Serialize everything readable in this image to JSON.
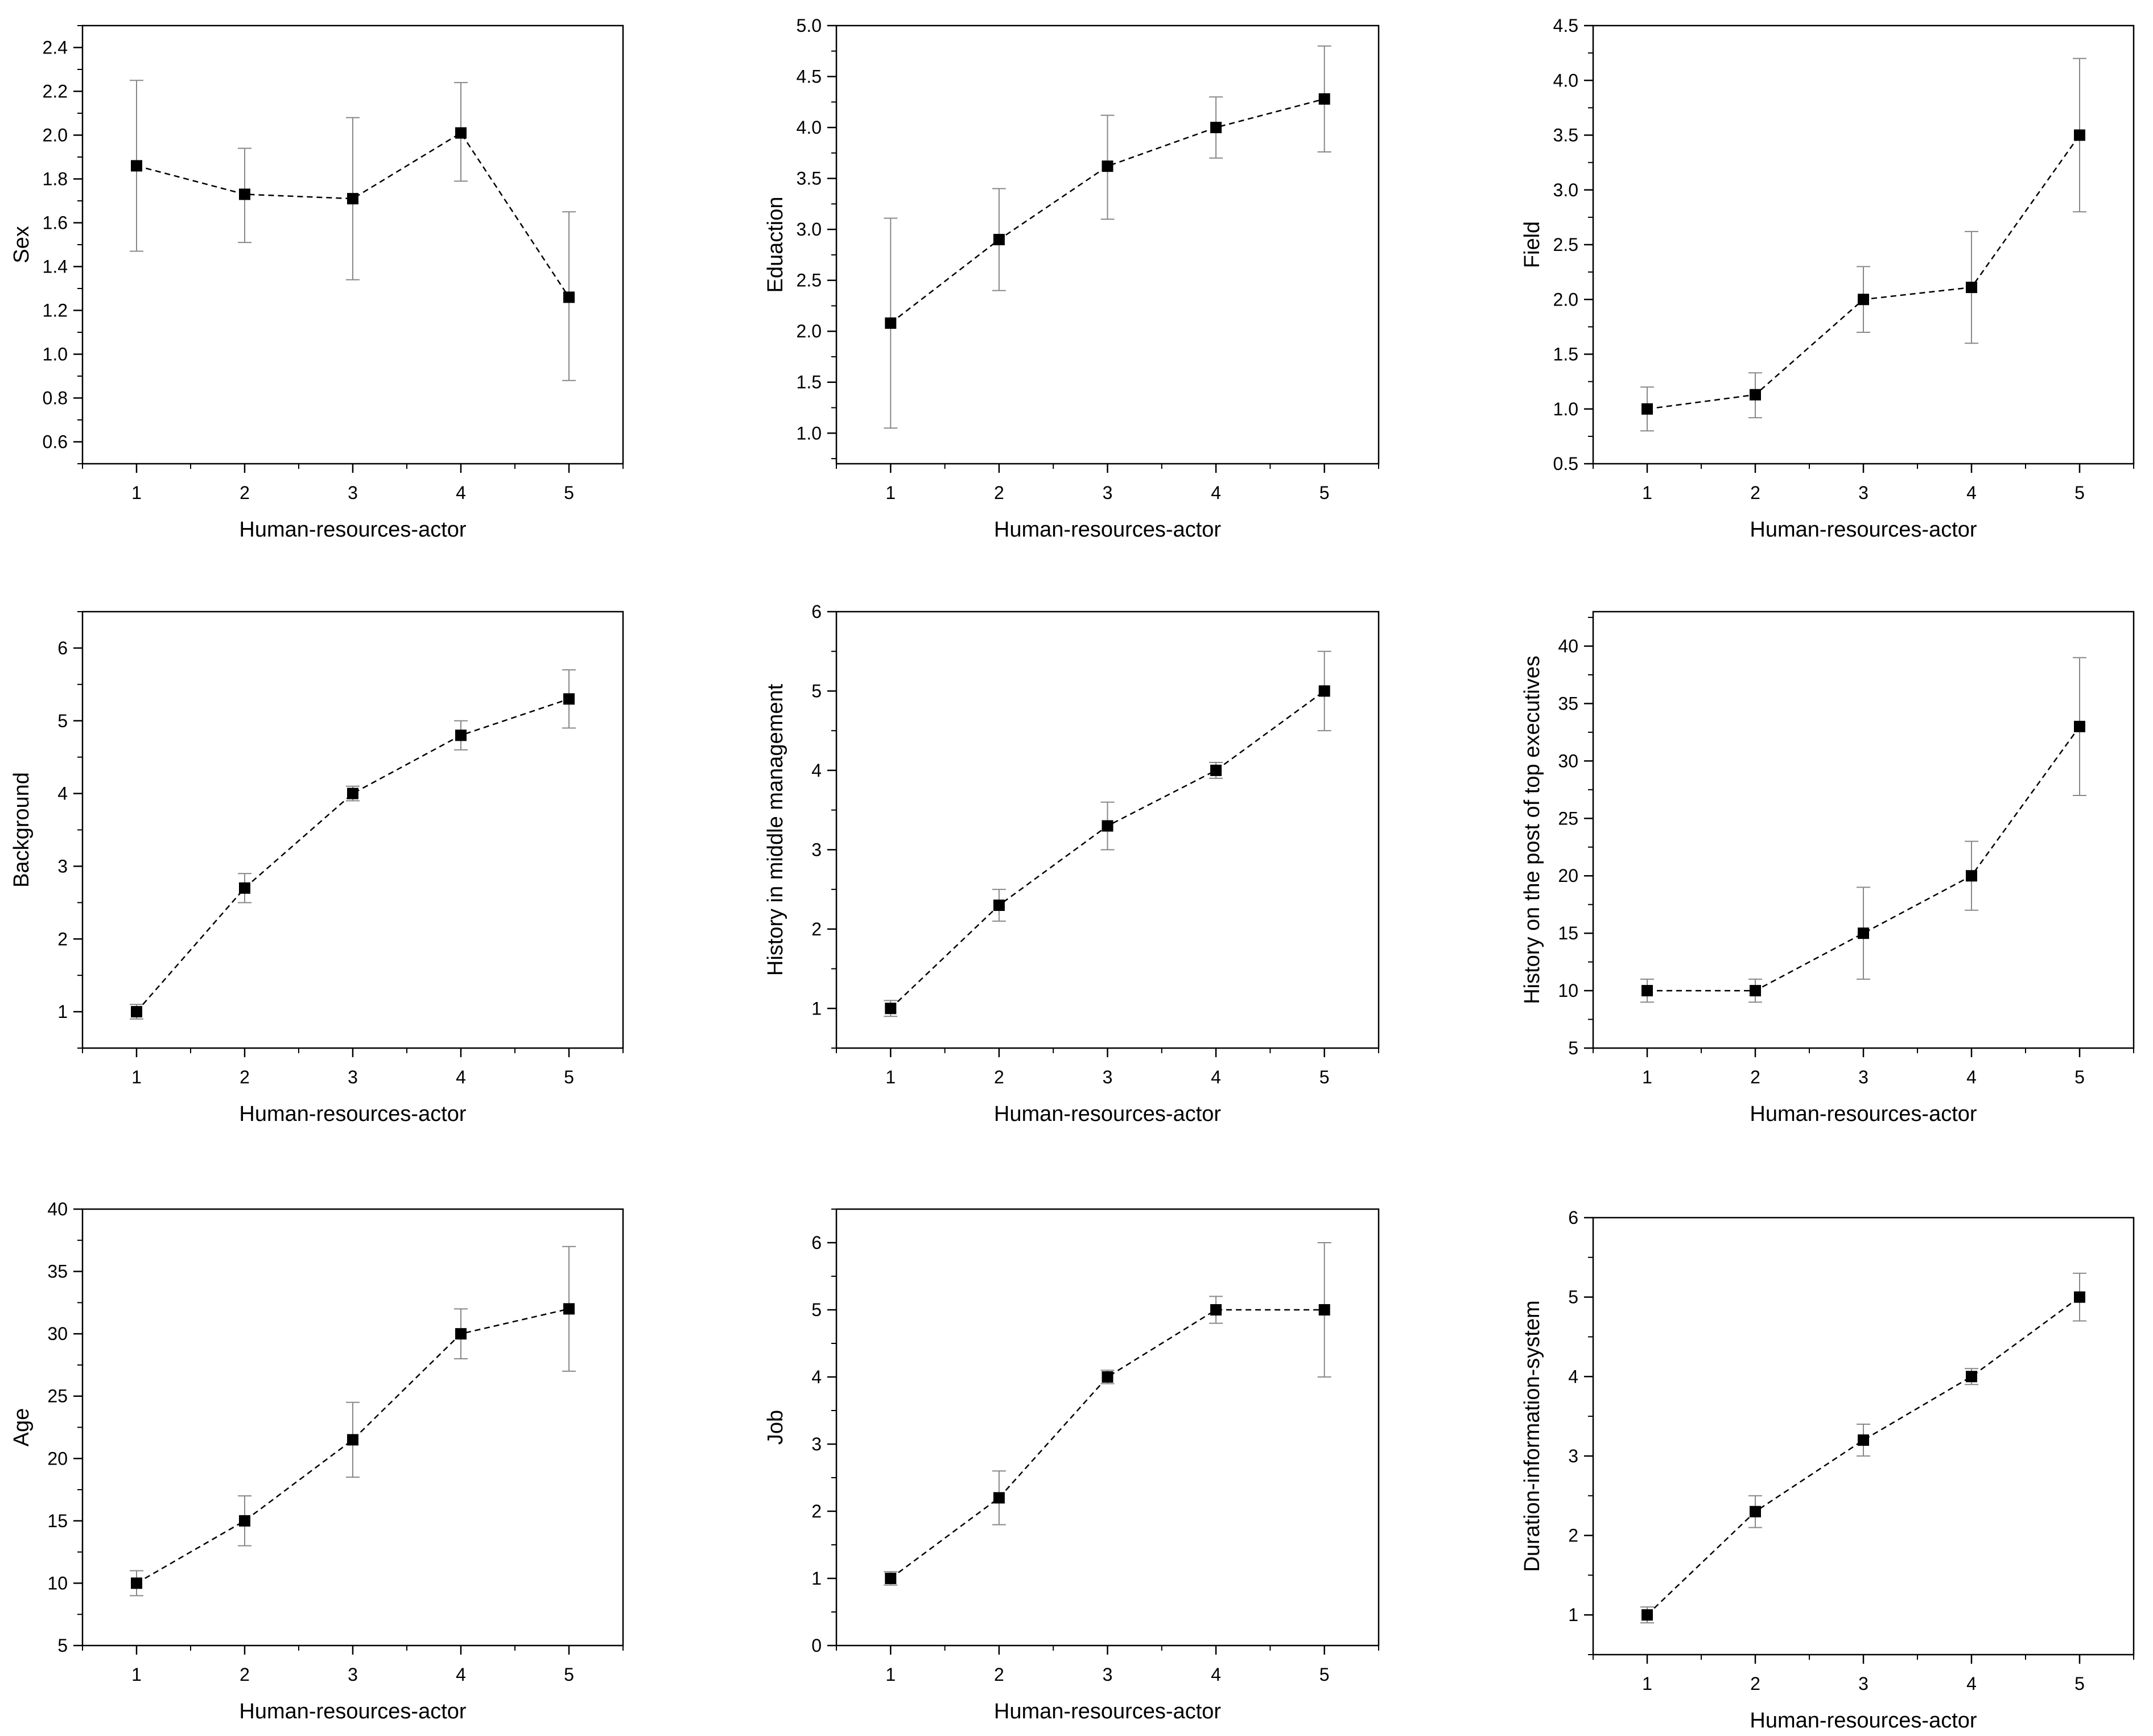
{
  "chart_data": [
    {
      "type": "line",
      "xlabel": "Human-resources-actor",
      "ylabel": "Sex",
      "x": [
        1,
        2,
        3,
        4,
        5
      ],
      "xlim": [
        0.5,
        5.5
      ],
      "ylim": [
        0.5,
        2.5
      ],
      "yticks": [
        0.6,
        0.8,
        1.0,
        1.2,
        1.4,
        1.6,
        1.8,
        2.0,
        2.2,
        2.4
      ],
      "ytick_decimals": 1,
      "series": [
        {
          "values": [
            1.86,
            1.73,
            1.71,
            2.01,
            1.26
          ],
          "err_low": [
            1.47,
            1.51,
            1.34,
            1.79,
            0.88
          ],
          "err_high": [
            2.25,
            1.94,
            2.08,
            2.24,
            1.65
          ]
        }
      ]
    },
    {
      "type": "line",
      "xlabel": "Human-resources-actor",
      "ylabel": "Eduaction",
      "x": [
        1,
        2,
        3,
        4,
        5
      ],
      "xlim": [
        0.5,
        5.5
      ],
      "ylim": [
        0.7,
        5.0
      ],
      "yticks": [
        1.0,
        1.5,
        2.0,
        2.5,
        3.0,
        3.5,
        4.0,
        4.5,
        5.0
      ],
      "ytick_decimals": 1,
      "series": [
        {
          "values": [
            2.08,
            2.9,
            3.62,
            4.0,
            4.28
          ],
          "err_low": [
            1.05,
            2.4,
            3.1,
            3.7,
            3.76
          ],
          "err_high": [
            3.11,
            3.4,
            4.12,
            4.3,
            4.8
          ]
        }
      ]
    },
    {
      "type": "line",
      "xlabel": "Human-resources-actor",
      "ylabel": "Field",
      "x": [
        1,
        2,
        3,
        4,
        5
      ],
      "xlim": [
        0.5,
        5.5
      ],
      "ylim": [
        0.5,
        4.5
      ],
      "yticks": [
        0.5,
        1.0,
        1.5,
        2.0,
        2.5,
        3.0,
        3.5,
        4.0,
        4.5
      ],
      "ytick_decimals": 1,
      "series": [
        {
          "values": [
            1.0,
            1.13,
            2.0,
            2.11,
            3.5
          ],
          "err_low": [
            0.8,
            0.92,
            1.7,
            1.6,
            2.8
          ],
          "err_high": [
            1.2,
            1.33,
            2.3,
            2.62,
            4.2
          ]
        }
      ]
    },
    {
      "type": "line",
      "xlabel": "Human-resources-actor",
      "ylabel": "Background",
      "x": [
        1,
        2,
        3,
        4,
        5
      ],
      "xlim": [
        0.5,
        5.5
      ],
      "ylim": [
        0.5,
        6.5
      ],
      "yticks": [
        1,
        2,
        3,
        4,
        5,
        6
      ],
      "ytick_decimals": 0,
      "series": [
        {
          "values": [
            1.0,
            2.7,
            4.0,
            4.8,
            5.3
          ],
          "err_low": [
            0.9,
            2.5,
            3.9,
            4.6,
            4.9
          ],
          "err_high": [
            1.1,
            2.9,
            4.1,
            5.0,
            5.7
          ]
        }
      ]
    },
    {
      "type": "line",
      "xlabel": "Human-resources-actor",
      "ylabel": "History in middle management",
      "x": [
        1,
        2,
        3,
        4,
        5
      ],
      "xlim": [
        0.5,
        5.5
      ],
      "ylim": [
        0.5,
        6.0
      ],
      "yticks": [
        1,
        2,
        3,
        4,
        5,
        6
      ],
      "ytick_decimals": 0,
      "series": [
        {
          "values": [
            1.0,
            2.3,
            3.3,
            4.0,
            5.0
          ],
          "err_low": [
            0.9,
            2.1,
            3.0,
            3.9,
            4.5
          ],
          "err_high": [
            1.1,
            2.5,
            3.6,
            4.1,
            5.5
          ]
        }
      ]
    },
    {
      "type": "line",
      "xlabel": "Human-resources-actor",
      "ylabel": "History on the post of top executives",
      "x": [
        1,
        2,
        3,
        4,
        5
      ],
      "xlim": [
        0.5,
        5.5
      ],
      "ylim": [
        5,
        43
      ],
      "yticks": [
        5,
        10,
        15,
        20,
        25,
        30,
        35,
        40
      ],
      "ytick_decimals": 0,
      "series": [
        {
          "values": [
            10,
            10,
            15,
            20,
            33
          ],
          "err_low": [
            9,
            9,
            11,
            17,
            27
          ],
          "err_high": [
            11,
            11,
            19,
            23,
            39
          ]
        }
      ]
    },
    {
      "type": "line",
      "xlabel": "Human-resources-actor",
      "ylabel": "Age",
      "x": [
        1,
        2,
        3,
        4,
        5
      ],
      "xlim": [
        0.5,
        5.5
      ],
      "ylim": [
        5,
        40
      ],
      "yticks": [
        5,
        10,
        15,
        20,
        25,
        30,
        35,
        40
      ],
      "ytick_decimals": 0,
      "series": [
        {
          "values": [
            10,
            15,
            21.5,
            30,
            32
          ],
          "err_low": [
            9,
            13,
            18.5,
            28,
            27
          ],
          "err_high": [
            11,
            17,
            24.5,
            32,
            37
          ]
        }
      ]
    },
    {
      "type": "line",
      "xlabel": "Human-resources-actor",
      "ylabel": "Job",
      "x": [
        1,
        2,
        3,
        4,
        5
      ],
      "xlim": [
        0.5,
        5.5
      ],
      "ylim": [
        0,
        6.5
      ],
      "yticks": [
        0,
        1,
        2,
        3,
        4,
        5,
        6
      ],
      "ytick_decimals": 0,
      "series": [
        {
          "values": [
            1.0,
            2.2,
            4.0,
            5.0,
            5.0
          ],
          "err_low": [
            0.9,
            1.8,
            3.9,
            4.8,
            4.0
          ],
          "err_high": [
            1.1,
            2.6,
            4.1,
            5.2,
            6.0
          ]
        }
      ]
    },
    {
      "type": "line",
      "xlabel": "Human-resources-actor",
      "ylabel": "Duration-information-system",
      "x": [
        1,
        2,
        3,
        4,
        5
      ],
      "xlim": [
        0.5,
        5.5
      ],
      "ylim": [
        0.5,
        6.0
      ],
      "yticks": [
        1,
        2,
        3,
        4,
        5,
        6
      ],
      "ytick_decimals": 0,
      "series": [
        {
          "values": [
            1.0,
            2.3,
            3.2,
            4.0,
            5.0
          ],
          "err_low": [
            0.9,
            2.1,
            3.0,
            3.9,
            4.7
          ],
          "err_high": [
            1.1,
            2.5,
            3.4,
            4.1,
            5.3
          ]
        }
      ]
    }
  ]
}
